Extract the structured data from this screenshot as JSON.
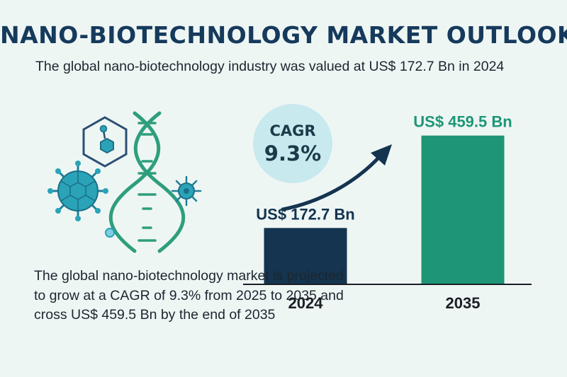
{
  "title": "NANO-BIOTECHNOLOGY MARKET OUTLOOK",
  "subtitle": "The global nano-biotechnology industry was valued at US$ 172.7 Bn in 2024",
  "cagr": {
    "label": "CAGR",
    "value": "9.3%"
  },
  "description": "The global nano-biotechnology market is projected to grow at a CAGR of 9.3% from 2025 to 2035 and cross US$ 459.5 Bn by the end of 2035",
  "colors": {
    "bar_2024": "#14344f",
    "bar_2035": "#1e9676",
    "label_2024": "#14344f",
    "label_2035": "#1e9676",
    "title": "#163a5c"
  },
  "icons": [
    "dna-icon",
    "hexagon-molecule-icon",
    "virus-icon",
    "nanoparticle-icon",
    "trend-arrow-icon"
  ],
  "chart_data": {
    "type": "bar",
    "categories": [
      "2024",
      "2035"
    ],
    "values": [
      172.7,
      459.5
    ],
    "data_labels": [
      "US$ 172.7 Bn",
      "US$ 459.5 Bn"
    ],
    "unit": "US$ Bn",
    "ylim": [
      0,
      500
    ],
    "grid": false,
    "legend": "none"
  }
}
